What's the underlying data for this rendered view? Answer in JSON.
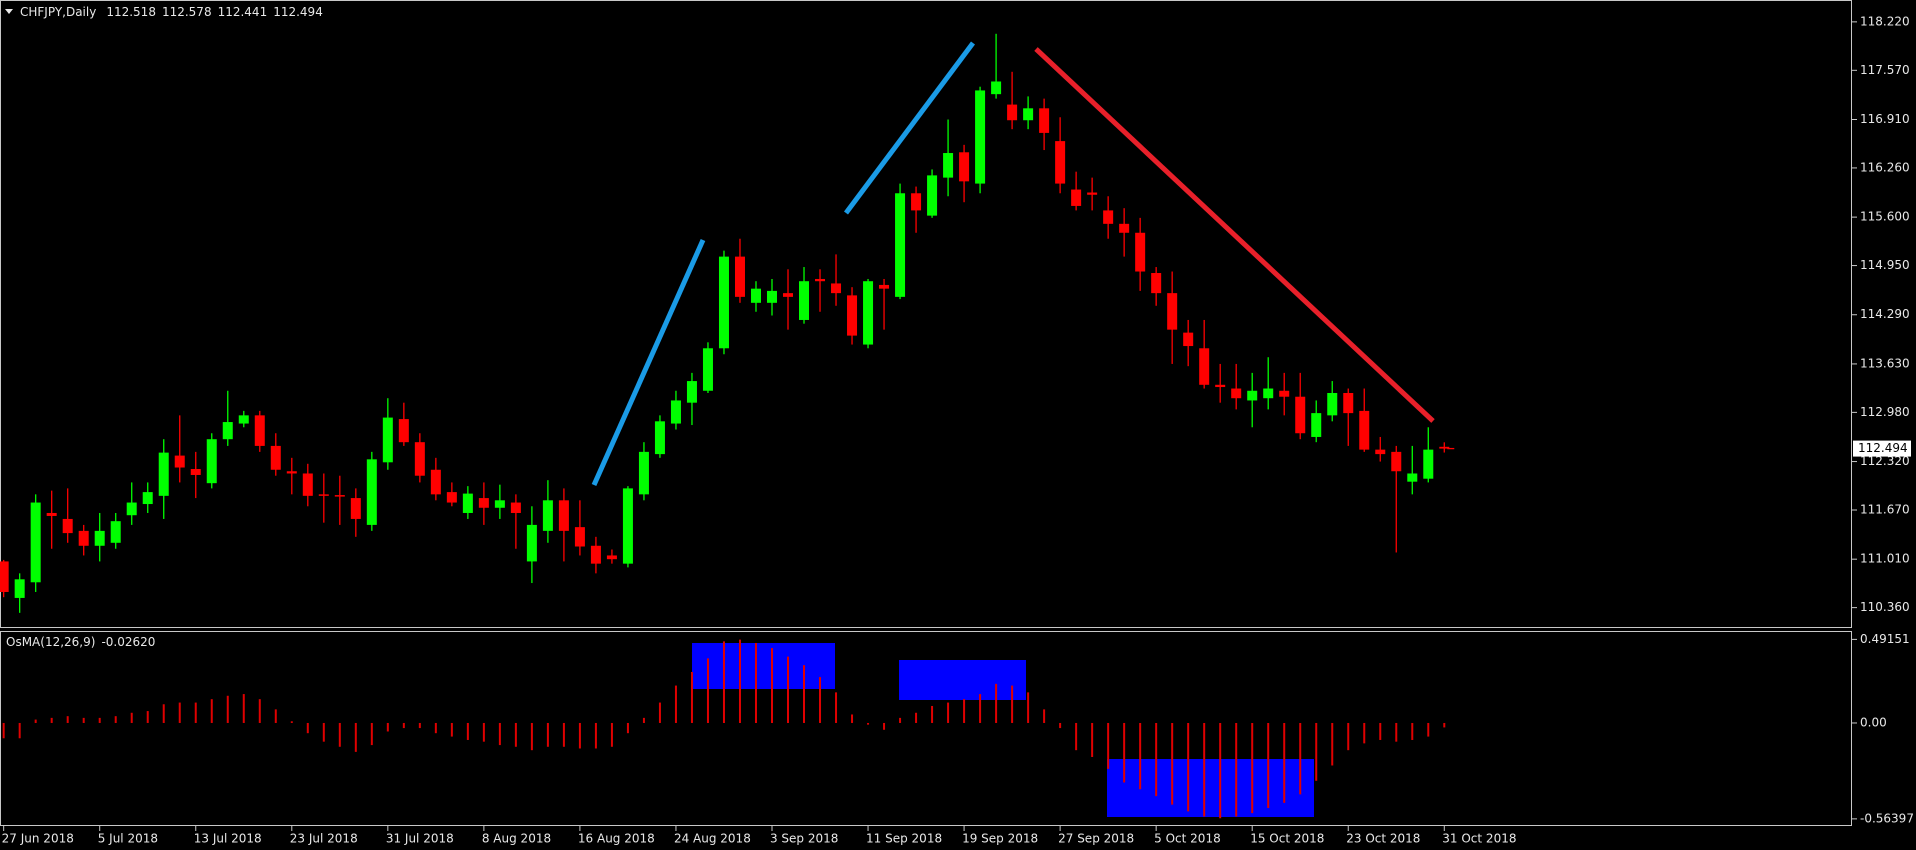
{
  "chart_data": [
    {
      "type": "candlestick",
      "title": "CHFJPY,Daily",
      "up_color": "#00ff00",
      "down_color": "#ff0000",
      "categories": [
        "27 Jun 2018",
        null,
        null,
        null,
        null,
        null,
        "5 Jul 2018",
        null,
        null,
        null,
        null,
        null,
        "13 Jul 2018",
        null,
        null,
        null,
        null,
        null,
        "23 Jul 2018",
        null,
        null,
        null,
        null,
        null,
        "31 Jul 2018",
        null,
        null,
        null,
        null,
        null,
        "8 Aug 2018",
        null,
        null,
        null,
        null,
        null,
        "16 Aug 2018",
        null,
        null,
        null,
        null,
        null,
        "24 Aug 2018",
        null,
        null,
        null,
        null,
        null,
        "3 Sep 2018",
        null,
        null,
        null,
        null,
        null,
        "11 Sep 2018",
        null,
        null,
        null,
        null,
        null,
        "19 Sep 2018",
        null,
        null,
        null,
        null,
        null,
        "27 Sep 2018",
        null,
        null,
        null,
        null,
        null,
        "5 Oct 2018",
        null,
        null,
        null,
        null,
        null,
        "15 Oct 2018",
        null,
        null,
        null,
        null,
        null,
        "23 Oct 2018",
        null,
        null,
        null,
        null,
        null,
        "31 Oct 2018"
      ],
      "open": [
        110.98,
        110.49,
        110.7,
        111.63,
        111.55,
        111.39,
        111.19,
        111.23,
        111.6,
        111.75,
        111.86,
        112.4,
        112.22,
        112.03,
        112.62,
        112.83,
        112.94,
        112.53,
        112.19,
        112.16,
        111.88,
        111.87,
        111.83,
        111.47,
        112.31,
        112.89,
        112.58,
        112.21,
        111.91,
        111.63,
        111.83,
        111.7,
        111.77,
        110.98,
        111.39,
        111.8,
        111.44,
        111.19,
        111.06,
        110.95,
        111.88,
        112.42,
        112.83,
        113.11,
        113.27,
        113.84,
        115.07,
        114.45,
        114.45,
        114.58,
        114.22,
        114.77,
        114.71,
        114.55,
        113.89,
        114.69,
        114.53,
        115.92,
        115.62,
        116.13,
        116.47,
        116.05,
        117.25,
        117.11,
        116.9,
        117.06,
        116.62,
        115.97,
        115.93,
        115.69,
        115.51,
        115.39,
        114.85,
        114.58,
        114.05,
        113.84,
        113.35,
        113.3,
        113.14,
        113.17,
        113.27,
        113.19,
        112.65,
        112.94,
        113.24,
        113.0,
        112.48,
        112.45,
        112.05,
        112.09,
        112.518
      ],
      "high": [
        111.0,
        110.82,
        111.88,
        111.93,
        111.96,
        111.47,
        111.63,
        111.63,
        112.04,
        112.04,
        112.62,
        112.94,
        112.45,
        112.7,
        113.27,
        113.0,
        113.0,
        112.7,
        112.37,
        112.29,
        112.16,
        112.13,
        111.96,
        112.45,
        113.17,
        113.11,
        112.7,
        112.37,
        112.04,
        111.99,
        112.04,
        112.01,
        111.88,
        111.72,
        112.07,
        111.96,
        111.8,
        111.31,
        111.14,
        111.99,
        112.58,
        112.94,
        113.27,
        113.51,
        113.92,
        115.15,
        115.31,
        114.74,
        114.77,
        114.9,
        114.93,
        114.9,
        115.1,
        114.66,
        114.77,
        114.77,
        116.05,
        116.01,
        116.24,
        116.91,
        116.57,
        117.35,
        118.06,
        117.55,
        117.22,
        117.19,
        116.94,
        116.21,
        116.13,
        115.88,
        115.72,
        115.59,
        114.93,
        114.87,
        114.22,
        114.22,
        113.63,
        113.63,
        113.51,
        113.72,
        113.51,
        113.51,
        113.14,
        113.4,
        113.3,
        113.3,
        112.65,
        112.53,
        112.53,
        112.78,
        112.578
      ],
      "low": [
        110.5,
        110.29,
        110.57,
        111.15,
        111.23,
        111.06,
        110.98,
        111.15,
        111.47,
        111.63,
        111.55,
        112.04,
        111.83,
        111.96,
        112.53,
        112.78,
        112.45,
        112.13,
        111.88,
        111.72,
        111.5,
        111.47,
        111.31,
        111.39,
        112.21,
        112.53,
        112.04,
        111.8,
        111.72,
        111.55,
        111.47,
        111.55,
        111.15,
        110.69,
        111.23,
        110.98,
        111.06,
        110.82,
        110.95,
        110.9,
        111.8,
        112.37,
        112.75,
        112.81,
        113.24,
        113.76,
        114.45,
        114.33,
        114.28,
        114.09,
        114.17,
        114.33,
        114.41,
        113.89,
        113.84,
        114.09,
        114.5,
        115.39,
        115.59,
        115.88,
        115.8,
        115.92,
        117.19,
        116.78,
        116.78,
        116.5,
        115.92,
        115.69,
        115.69,
        115.31,
        115.07,
        114.61,
        114.41,
        113.63,
        113.6,
        113.3,
        113.11,
        113.02,
        112.78,
        113.02,
        112.94,
        112.62,
        112.58,
        112.86,
        112.53,
        112.45,
        112.32,
        111.1,
        111.88,
        112.04,
        112.441
      ],
      "close": [
        110.57,
        110.74,
        111.77,
        111.59,
        111.36,
        111.19,
        111.39,
        111.52,
        111.77,
        111.91,
        112.44,
        112.24,
        112.14,
        112.62,
        112.85,
        112.94,
        112.53,
        112.21,
        112.16,
        111.86,
        111.86,
        111.85,
        111.55,
        112.35,
        112.91,
        112.58,
        112.13,
        111.88,
        111.77,
        111.89,
        111.7,
        111.8,
        111.63,
        111.47,
        111.8,
        111.39,
        111.18,
        110.95,
        111.01,
        111.96,
        112.45,
        112.86,
        113.14,
        113.4,
        113.84,
        115.07,
        114.53,
        114.64,
        114.61,
        114.53,
        114.74,
        114.74,
        114.58,
        114.01,
        114.74,
        114.64,
        115.92,
        115.69,
        116.16,
        116.46,
        116.08,
        117.3,
        117.42,
        116.9,
        117.06,
        116.73,
        116.05,
        115.75,
        115.9,
        115.51,
        115.39,
        114.87,
        114.58,
        114.09,
        113.87,
        113.35,
        113.32,
        113.17,
        113.27,
        113.3,
        113.19,
        112.7,
        112.97,
        113.24,
        112.97,
        112.48,
        112.42,
        112.19,
        112.16,
        112.48,
        112.494
      ],
      "ylim": [
        110.1,
        118.5
      ],
      "yticks": [
        {
          "value": 118.22,
          "label": "118.220"
        },
        {
          "value": 117.57,
          "label": "117.570"
        },
        {
          "value": 116.91,
          "label": "116.910"
        },
        {
          "value": 116.26,
          "label": "116.260"
        },
        {
          "value": 115.6,
          "label": "115.600"
        },
        {
          "value": 114.95,
          "label": "114.950"
        },
        {
          "value": 114.29,
          "label": "114.290"
        },
        {
          "value": 113.63,
          "label": "113.630"
        },
        {
          "value": 112.98,
          "label": "112.980"
        },
        {
          "value": 112.32,
          "label": "112.320"
        },
        {
          "value": 111.67,
          "label": "111.670"
        },
        {
          "value": 111.01,
          "label": "111.010"
        },
        {
          "value": 110.36,
          "label": "110.360"
        }
      ]
    },
    {
      "type": "bar",
      "title": "OsMA(12,26,9)",
      "title_value": {
        "value": -0.0262,
        "label": "-0.02620"
      },
      "color": "#e00000",
      "values": [
        -0.09,
        -0.09,
        0.02,
        0.03,
        0.04,
        0.03,
        0.03,
        0.04,
        0.06,
        0.07,
        0.11,
        0.12,
        0.12,
        0.14,
        0.16,
        0.17,
        0.14,
        0.08,
        0.01,
        -0.06,
        -0.11,
        -0.14,
        -0.17,
        -0.13,
        -0.05,
        -0.03,
        -0.03,
        -0.06,
        -0.08,
        -0.1,
        -0.11,
        -0.13,
        -0.14,
        -0.16,
        -0.14,
        -0.14,
        -0.15,
        -0.15,
        -0.14,
        -0.06,
        0.03,
        0.12,
        0.22,
        0.3,
        0.38,
        0.48,
        0.49,
        0.47,
        0.44,
        0.39,
        0.34,
        0.27,
        0.18,
        0.05,
        -0.01,
        -0.04,
        0.03,
        0.06,
        0.1,
        0.12,
        0.14,
        0.17,
        0.23,
        0.22,
        0.18,
        0.08,
        -0.03,
        -0.16,
        -0.2,
        -0.27,
        -0.35,
        -0.39,
        -0.43,
        -0.48,
        -0.52,
        -0.55,
        -0.56,
        -0.55,
        -0.53,
        -0.5,
        -0.47,
        -0.42,
        -0.34,
        -0.25,
        -0.16,
        -0.12,
        -0.1,
        -0.11,
        -0.1,
        -0.08,
        -0.0262
      ],
      "ylim": [
        -0.6,
        0.535
      ],
      "yticks": [
        {
          "value": 0.49151,
          "label": "0.49151"
        },
        {
          "value": 0,
          "label": "0.00"
        },
        {
          "value": -0.56397,
          "label": "-0.56397"
        }
      ]
    }
  ]
}
